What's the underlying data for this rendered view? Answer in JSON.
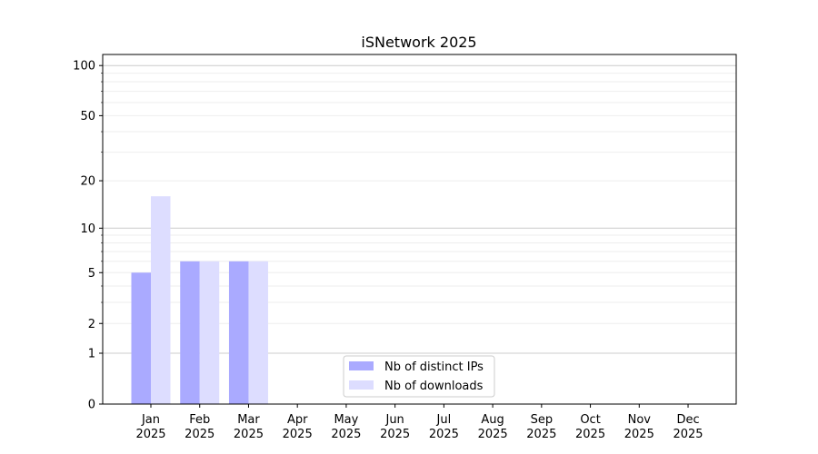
{
  "chart_data": {
    "type": "bar",
    "title": "iSNetwork 2025",
    "xlabel": "",
    "ylabel": "",
    "yscale": "symlog (log10(1+y))",
    "ylim": [
      0,
      116
    ],
    "grid": true,
    "legend_position": "bottom-center",
    "categories": [
      "Jan\n2025",
      "Feb\n2025",
      "Mar\n2025",
      "Apr\n2025",
      "May\n2025",
      "Jun\n2025",
      "Jul\n2025",
      "Aug\n2025",
      "Sep\n2025",
      "Oct\n2025",
      "Nov\n2025",
      "Dec\n2025"
    ],
    "yticks": [
      0,
      1,
      2,
      5,
      10,
      20,
      50,
      100
    ],
    "series": [
      {
        "name": "Nb of distinct IPs",
        "color": "#aaaaff",
        "values": [
          5,
          6,
          6,
          0,
          0,
          0,
          0,
          0,
          0,
          0,
          0,
          0
        ]
      },
      {
        "name": "Nb of downloads",
        "color": "#ddddff",
        "values": [
          16,
          6,
          6,
          0,
          0,
          0,
          0,
          0,
          0,
          0,
          0,
          0
        ]
      }
    ]
  }
}
